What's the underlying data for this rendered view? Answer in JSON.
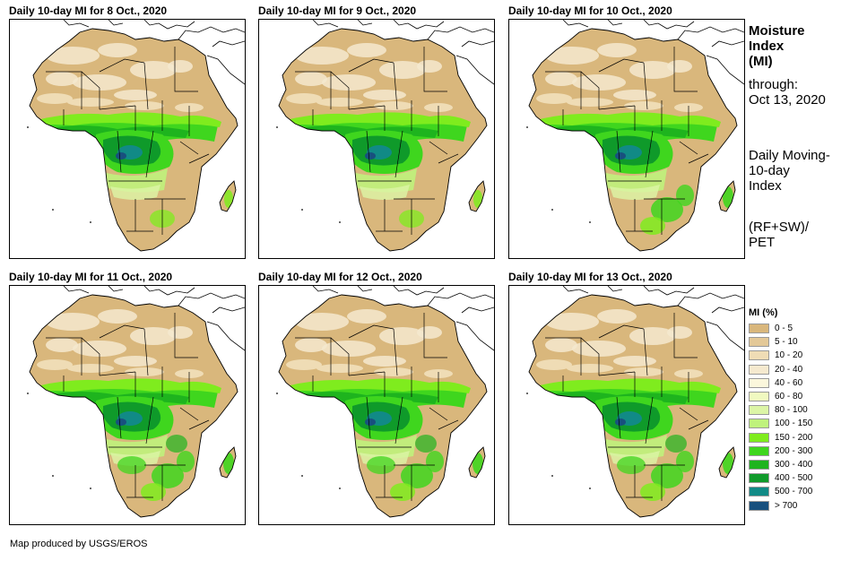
{
  "panels": [
    {
      "title": "Daily 10-day MI for 8 Oct., 2020"
    },
    {
      "title": "Daily 10-day MI for 9 Oct., 2020"
    },
    {
      "title": "Daily 10-day MI for 10 Oct., 2020"
    },
    {
      "title": "Daily 10-day MI for 11 Oct., 2020"
    },
    {
      "title": "Daily 10-day MI for 12 Oct., 2020"
    },
    {
      "title": "Daily 10-day MI for 13 Oct., 2020"
    }
  ],
  "side": {
    "title_lines": [
      "Moisture",
      "Index",
      "(MI)"
    ],
    "through_label": "through:",
    "through_date": "Oct 13, 2020",
    "desc_lines": [
      "Daily Moving-",
      "10-day",
      "Index"
    ],
    "formula_lines": [
      "(RF+SW)/",
      "PET"
    ]
  },
  "legend": {
    "title": "MI (%)",
    "items": [
      {
        "label": "0 - 5",
        "color": "#d9b77c"
      },
      {
        "label": "5 - 10",
        "color": "#e3c897"
      },
      {
        "label": "10 - 20",
        "color": "#efdcb5"
      },
      {
        "label": "20 - 40",
        "color": "#f5e9cf"
      },
      {
        "label": "40 - 60",
        "color": "#fbf7dc"
      },
      {
        "label": "60 - 80",
        "color": "#f0f9c0"
      },
      {
        "label": "80 - 100",
        "color": "#dcf5a6"
      },
      {
        "label": "100 - 150",
        "color": "#bff27c"
      },
      {
        "label": "150 - 200",
        "color": "#7fec1e"
      },
      {
        "label": "200 - 300",
        "color": "#3fd61e"
      },
      {
        "label": "300 - 400",
        "color": "#1eb41e"
      },
      {
        "label": "400 - 500",
        "color": "#0f9a2a"
      },
      {
        "label": "500 - 700",
        "color": "#118a86"
      },
      {
        "label": "> 700",
        "color": "#18507e"
      }
    ]
  },
  "credit": "Map produced by USGS/EROS"
}
